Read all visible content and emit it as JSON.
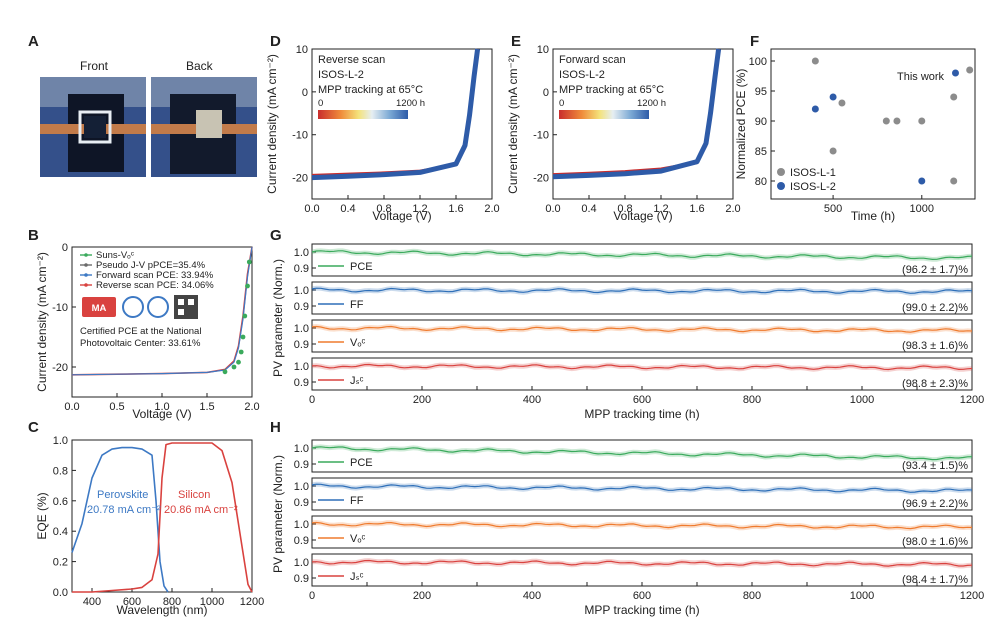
{
  "panel_labels": [
    "A",
    "B",
    "C",
    "D",
    "E",
    "F",
    "G",
    "H"
  ],
  "panel_a": {
    "front_label": "Front",
    "back_label": "Back"
  },
  "chart_data": [
    {
      "panel": "B",
      "type": "line",
      "xlabel": "Voltage (V)",
      "ylabel": "Current density (mA cm⁻²)",
      "xlim": [
        0,
        2.0
      ],
      "ylim": [
        -25,
        0
      ],
      "xticks": [
        "0.0",
        "0.5",
        "1.0",
        "1.5",
        "2.0"
      ],
      "yticks": [
        "0",
        "-10",
        "-20"
      ],
      "legend": [
        "Suns-Vₒᶜ",
        "Pseudo J-V pPCE=35.4%",
        "Forward scan PCE: 33.94%",
        "Reverse scan PCE: 34.06%"
      ],
      "legend_colors": [
        "#3aaa5c",
        "#6b6b6b",
        "#3d79c4",
        "#d9423f"
      ],
      "certification": [
        "Certified PCE at the National",
        "Photovoltaic Center: 33.61%"
      ],
      "series": [
        {
          "name": "Reverse scan PCE: 34.06%",
          "x": [
            0,
            0.5,
            1.0,
            1.5,
            1.7,
            1.8,
            1.85,
            1.9,
            1.95,
            2.0
          ],
          "y": [
            -21.3,
            -21.2,
            -21.1,
            -20.9,
            -20.4,
            -19.0,
            -16.5,
            -11.5,
            -4.5,
            0
          ]
        },
        {
          "name": "Forward scan PCE: 33.94%",
          "x": [
            0,
            0.5,
            1.0,
            1.5,
            1.7,
            1.8,
            1.85,
            1.9,
            1.95,
            2.0
          ],
          "y": [
            -21.3,
            -21.2,
            -21.1,
            -20.9,
            -20.5,
            -19.2,
            -16.8,
            -12.0,
            -5.0,
            0
          ]
        },
        {
          "name": "Suns-Vₒᶜ",
          "x": [
            1.7,
            1.8,
            1.85,
            1.88,
            1.9,
            1.92,
            1.95,
            1.97
          ],
          "y": [
            -20.8,
            -20.0,
            -19.2,
            -17.5,
            -15.0,
            -11.5,
            -6.5,
            -2.5
          ]
        }
      ]
    },
    {
      "panel": "C",
      "type": "line",
      "xlabel": "Wavelength (nm)",
      "ylabel": "EQE (%)",
      "xlim": [
        300,
        1200
      ],
      "ylim": [
        0,
        1.0
      ],
      "xticks": [
        "400",
        "600",
        "800",
        "1000",
        "1200"
      ],
      "yticks": [
        "0.0",
        "0.2",
        "0.4",
        "0.6",
        "0.8",
        "1.0"
      ],
      "annotations": [
        "Perovskite",
        "20.78 mA cm⁻²",
        "Silicon",
        "20.86 mA cm⁻²"
      ],
      "series": [
        {
          "name": "Perovskite",
          "color": "#3d79c4",
          "x": [
            300,
            350,
            400,
            450,
            500,
            550,
            600,
            650,
            700,
            720,
            740,
            760,
            780
          ],
          "y": [
            0.26,
            0.45,
            0.75,
            0.9,
            0.94,
            0.95,
            0.95,
            0.94,
            0.9,
            0.6,
            0.2,
            0.04,
            0.0
          ]
        },
        {
          "name": "Silicon",
          "color": "#d9423f",
          "x": [
            300,
            400,
            500,
            600,
            650,
            700,
            730,
            750,
            770,
            800,
            900,
            1000,
            1050,
            1100,
            1150,
            1180,
            1200
          ],
          "y": [
            0,
            0,
            0.01,
            0.02,
            0.03,
            0.08,
            0.25,
            0.75,
            0.97,
            0.98,
            0.98,
            0.98,
            0.93,
            0.72,
            0.3,
            0.05,
            0
          ]
        }
      ]
    },
    {
      "panel": "D",
      "type": "line",
      "xlabel": "Voltage (V)",
      "ylabel": "Current density (mA cm⁻²)",
      "xlim": [
        0,
        2.0
      ],
      "ylim": [
        -25,
        10
      ],
      "xticks": [
        "0.0",
        "0.4",
        "0.8",
        "1.2",
        "1.6",
        "2.0"
      ],
      "yticks": [
        "10",
        "0",
        "-10",
        "-20"
      ],
      "annotation_lines": [
        "Reverse scan",
        "ISOS-L-2",
        "MPP tracking at 65°C"
      ],
      "colorbar": {
        "min": "0",
        "max": "1200 h"
      },
      "series": [
        {
          "name": "0 h",
          "color": "#c92d2d",
          "x": [
            0,
            0.4,
            0.8,
            1.2,
            1.6,
            1.7,
            1.75,
            1.8,
            1.84
          ],
          "y": [
            -19.5,
            -19.2,
            -18.9,
            -18.5,
            -17.0,
            -13.0,
            -6.0,
            3.0,
            10
          ]
        },
        {
          "name": "1200 h",
          "color": "#2e5ba8",
          "x": [
            0,
            0.4,
            0.8,
            1.2,
            1.6,
            1.7,
            1.75,
            1.8,
            1.84
          ],
          "y": [
            -20.0,
            -19.7,
            -19.3,
            -18.8,
            -16.8,
            -12.5,
            -5.5,
            3.5,
            10
          ]
        }
      ]
    },
    {
      "panel": "E",
      "type": "line",
      "xlabel": "Voltage (V)",
      "ylabel": "Current density (mA cm⁻²)",
      "xlim": [
        0,
        2.0
      ],
      "ylim": [
        -25,
        10
      ],
      "xticks": [
        "0.0",
        "0.4",
        "0.8",
        "1.2",
        "1.6",
        "2.0"
      ],
      "yticks": [
        "10",
        "0",
        "-10",
        "-20"
      ],
      "annotation_lines": [
        "Forward scan",
        "ISOS-L-2",
        "MPP tracking at 65°C"
      ],
      "colorbar": {
        "min": "0",
        "max": "1200 h"
      },
      "series": [
        {
          "name": "0 h",
          "color": "#c92d2d",
          "x": [
            0,
            0.4,
            0.8,
            1.2,
            1.6,
            1.7,
            1.75,
            1.8,
            1.84
          ],
          "y": [
            -19.3,
            -19.0,
            -18.6,
            -18.0,
            -16.5,
            -12.5,
            -5.5,
            3.0,
            10
          ]
        },
        {
          "name": "1200 h",
          "color": "#2e5ba8",
          "x": [
            0,
            0.4,
            0.8,
            1.2,
            1.6,
            1.7,
            1.75,
            1.8,
            1.84
          ],
          "y": [
            -19.8,
            -19.5,
            -19.1,
            -18.5,
            -16.3,
            -12.0,
            -5.0,
            3.5,
            10
          ]
        }
      ]
    },
    {
      "panel": "F",
      "type": "scatter",
      "xlabel": "Time (h)",
      "ylabel": "Normalized PCE (%)",
      "xlim": [
        150,
        1300
      ],
      "ylim": [
        77,
        102
      ],
      "xticks": [
        "500",
        "1000"
      ],
      "yticks": [
        "80",
        "85",
        "90",
        "95",
        "100"
      ],
      "annotation": "This work",
      "series": [
        {
          "name": "ISOS-L-1",
          "color": "#8c8c8c",
          "x": [
            400,
            500,
            550,
            800,
            860,
            1000,
            1180,
            1180,
            1270
          ],
          "y": [
            100,
            85,
            93,
            90,
            90,
            90,
            94,
            80,
            98.5
          ]
        },
        {
          "name": "ISOS-L-2",
          "color": "#2e5ba8",
          "x": [
            400,
            500,
            1000,
            1190
          ],
          "y": [
            92,
            94,
            80,
            98
          ]
        }
      ]
    },
    {
      "panel": "G",
      "type": "line",
      "xlabel": "MPP tracking time (h)",
      "ylabel": "PV parameter (Norm.)",
      "xlim": [
        0,
        1200
      ],
      "xticks": [
        "0",
        "100",
        "200",
        "300",
        "400",
        "500",
        "600",
        "700",
        "800",
        "900",
        "1000",
        "1100",
        "1200"
      ],
      "subplots": [
        {
          "name": "PCE",
          "color": "#3aaa5c",
          "yticks": [
            "1.0",
            "0.9"
          ],
          "value": "(96.2 ± 1.7)%",
          "level": 0.962
        },
        {
          "name": "FF",
          "color": "#2e6fb8",
          "yticks": [
            "1.0",
            "0.9"
          ],
          "value": "(99.0 ± 2.2)%",
          "level": 0.99
        },
        {
          "name": "Vₒᶜ",
          "color": "#ef7b2e",
          "yticks": [
            "1.0",
            "0.9"
          ],
          "value": "(98.3 ± 1.6)%",
          "level": 0.983
        },
        {
          "name": "Jₛᶜ",
          "color": "#d9423f",
          "yticks": [
            "1.0",
            "0.9"
          ],
          "value": "(98.8 ± 2.3)%",
          "level": 0.988
        }
      ]
    },
    {
      "panel": "H",
      "type": "line",
      "xlabel": "MPP tracking time (h)",
      "ylabel": "PV parameter (Norm.)",
      "xlim": [
        0,
        1200
      ],
      "xticks": [
        "0",
        "100",
        "200",
        "300",
        "400",
        "500",
        "600",
        "700",
        "800",
        "900",
        "1000",
        "1100",
        "1200"
      ],
      "subplots": [
        {
          "name": "PCE",
          "color": "#3aaa5c",
          "yticks": [
            "1.0",
            "0.9"
          ],
          "value": "(93.4 ± 1.5)%",
          "level": 0.934
        },
        {
          "name": "FF",
          "color": "#2e6fb8",
          "yticks": [
            "1.0",
            "0.9"
          ],
          "value": "(96.9 ± 2.2)%",
          "level": 0.969
        },
        {
          "name": "Vₒᶜ",
          "color": "#ef7b2e",
          "yticks": [
            "1.0",
            "0.9"
          ],
          "value": "(98.0 ± 1.6)%",
          "level": 0.98
        },
        {
          "name": "Jₛᶜ",
          "color": "#d9423f",
          "yticks": [
            "1.0",
            "0.9"
          ],
          "value": "(98.4 ± 1.7)%",
          "level": 0.984
        }
      ]
    }
  ]
}
